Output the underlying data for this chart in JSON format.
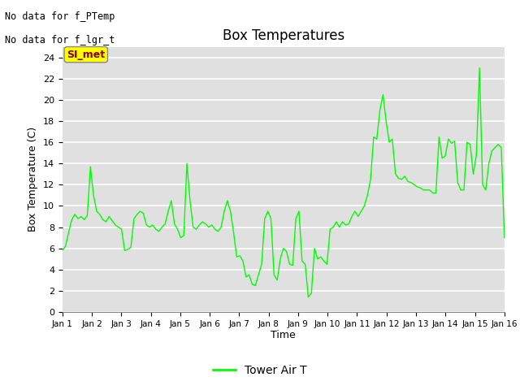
{
  "title": "Box Temperatures",
  "xlabel": "Time",
  "ylabel": "Box Temperature (C)",
  "ylim": [
    0,
    25
  ],
  "yticks": [
    0,
    2,
    4,
    6,
    8,
    10,
    12,
    14,
    16,
    18,
    20,
    22,
    24
  ],
  "bg_color": "#e0e0e0",
  "line_color": "#00ff00",
  "text_no_data": [
    "No data for f_PTemp",
    "No data for f_lgr_t"
  ],
  "annotation_box_text": "SI_met",
  "annotation_box_color": "#ffff00",
  "annotation_box_text_color": "#8b0000",
  "legend_label": "Tower Air T",
  "x_labels": [
    "Jan 1",
    "Jan 2",
    "Jan 3",
    "Jan 4",
    "Jan 5",
    "Jan 6",
    "Jan 7",
    "Jan 8",
    "Jan 9",
    "Jan 10",
    "Jan 11",
    "Jan 12",
    "Jan 13",
    "Jan 14",
    "Jan 15",
    "Jan 16"
  ],
  "x_values": [
    1,
    2,
    3,
    4,
    5,
    6,
    7,
    8,
    9,
    10,
    11,
    12,
    13,
    14,
    15,
    16
  ],
  "y_values": [
    5.8,
    6.2,
    7.5,
    8.7,
    9.2,
    8.8,
    9.0,
    8.7,
    9.1,
    13.7,
    11.0,
    9.5,
    9.2,
    8.7,
    8.5,
    9.0,
    8.6,
    8.2,
    8.0,
    7.8,
    5.8,
    5.9,
    6.1,
    8.8,
    9.2,
    9.5,
    9.3,
    8.2,
    8.0,
    8.2,
    7.8,
    7.6,
    8.0,
    8.3,
    9.5,
    10.5,
    8.3,
    7.8,
    7.0,
    7.2,
    14.0,
    10.5,
    8.0,
    7.8,
    8.2,
    8.5,
    8.3,
    8.0,
    8.2,
    7.8,
    7.6,
    8.0,
    9.5,
    10.5,
    9.5,
    7.5,
    5.2,
    5.3,
    4.8,
    3.3,
    3.5,
    2.6,
    2.5,
    3.5,
    4.5,
    8.8,
    9.5,
    8.8,
    3.5,
    3.0,
    5.0,
    6.0,
    5.7,
    4.5,
    4.4,
    8.8,
    9.5,
    4.8,
    4.5,
    1.4,
    1.8,
    6.0,
    5.0,
    5.2,
    4.8,
    4.5,
    7.8,
    8.0,
    8.5,
    8.0,
    8.5,
    8.2,
    8.3,
    9.0,
    9.5,
    9.0,
    9.5,
    10.0,
    11.0,
    12.5,
    16.5,
    16.3,
    19.0,
    20.5,
    18.0,
    16.0,
    16.3,
    13.0,
    12.6,
    12.5,
    12.8,
    12.3,
    12.2,
    12.0,
    11.8,
    11.7,
    11.5,
    11.5,
    11.5,
    11.2,
    11.2,
    16.5,
    14.5,
    14.7,
    16.3,
    15.9,
    16.1,
    12.2,
    11.5,
    11.5,
    16.0,
    15.8,
    13.0,
    14.8,
    23.0,
    12.0,
    11.5,
    14.0,
    15.2,
    15.5,
    15.8,
    15.5,
    7.0
  ]
}
